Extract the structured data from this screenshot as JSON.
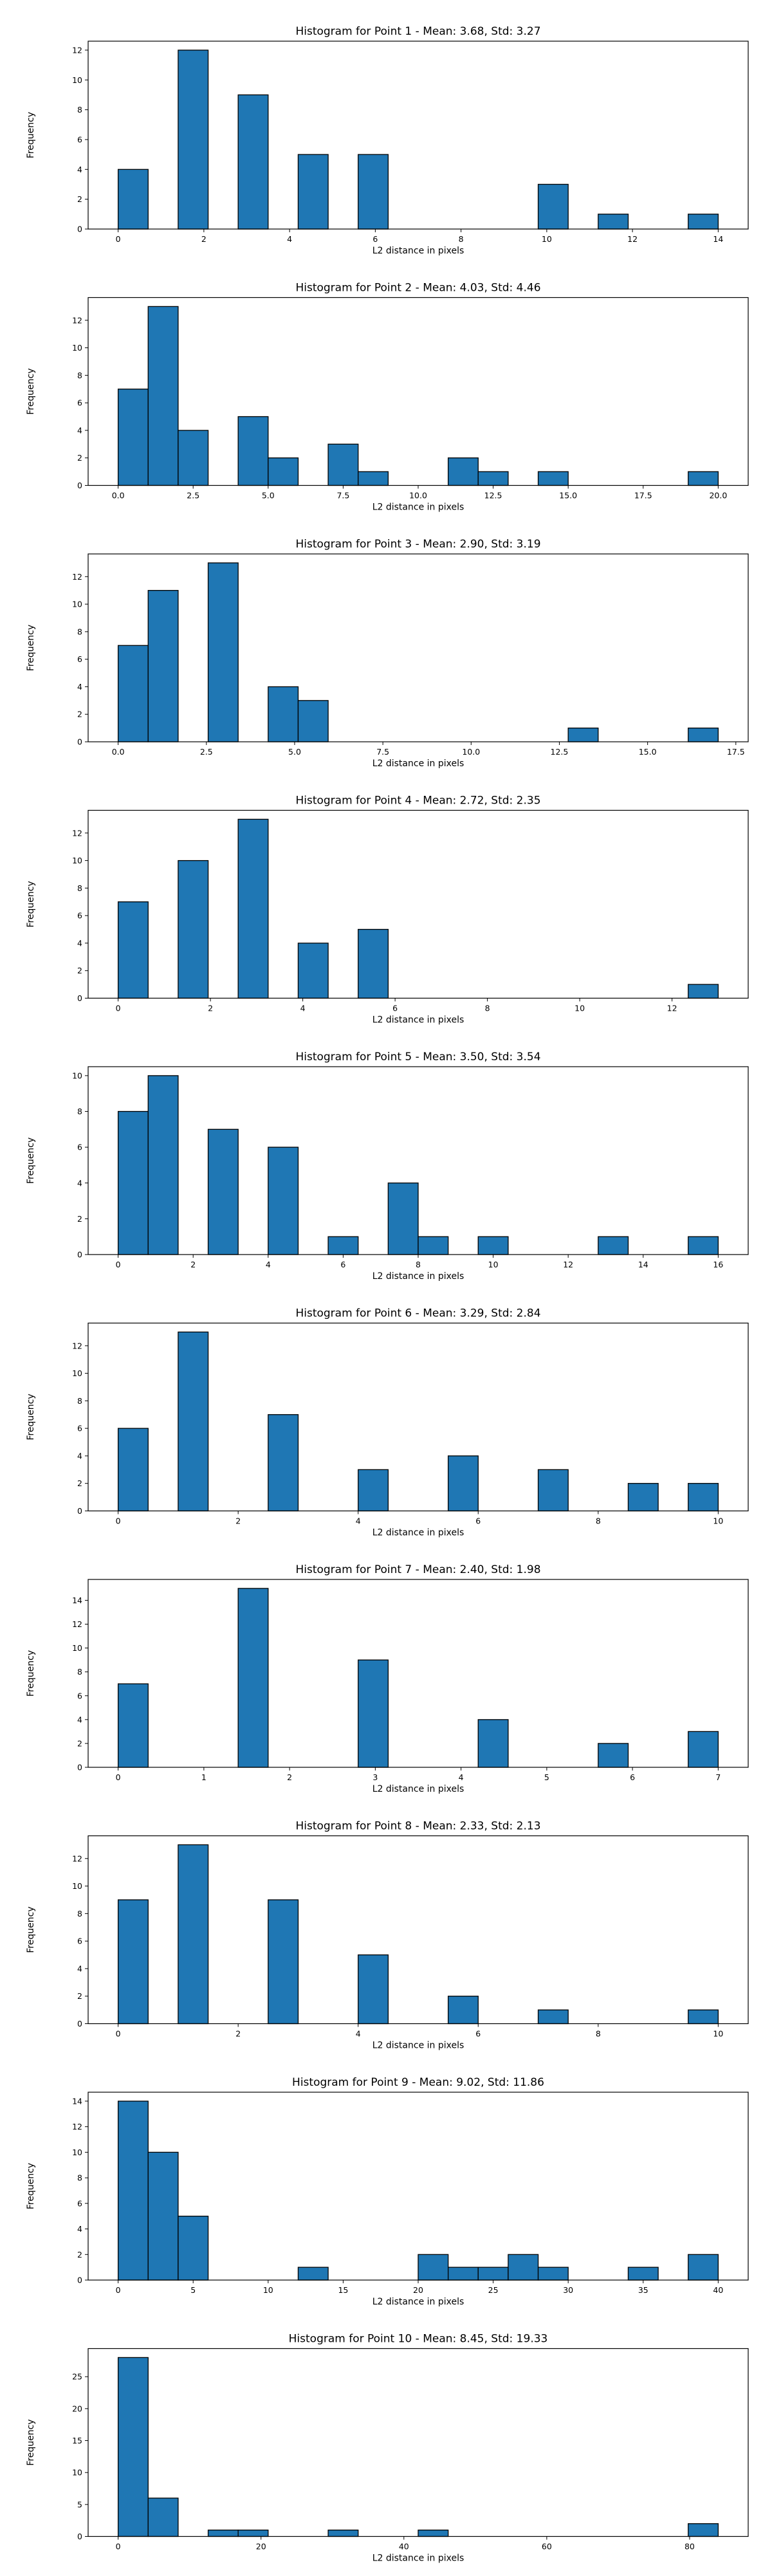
{
  "colors": {
    "bar": "#1f77b4",
    "edge": "#000000"
  },
  "chart_data": [
    {
      "type": "bar",
      "title": "Histogram for Point 1 - Mean: 3.68, Std: 3.27",
      "xlabel": "L2 distance in pixels",
      "ylabel": "Frequency",
      "xlim": [
        -0.7,
        14.7
      ],
      "ylim": [
        0,
        12.6
      ],
      "xticks": [
        0,
        2,
        4,
        6,
        8,
        10,
        12,
        14
      ],
      "xtick_labels": [
        "0",
        "2",
        "4",
        "6",
        "8",
        "10",
        "12",
        "14"
      ],
      "yticks": [
        0,
        2,
        4,
        6,
        8,
        10,
        12
      ],
      "ytick_labels": [
        "0",
        "2",
        "4",
        "6",
        "8",
        "10",
        "12"
      ],
      "bins": [
        [
          0,
          0.7,
          4
        ],
        [
          1.4,
          2.1,
          12
        ],
        [
          2.8,
          3.5,
          9
        ],
        [
          4.2,
          4.9,
          5
        ],
        [
          5.6,
          6.3,
          5
        ],
        [
          9.8,
          10.5,
          3
        ],
        [
          11.2,
          11.9,
          1
        ],
        [
          13.3,
          14,
          1
        ]
      ]
    },
    {
      "type": "bar",
      "title": "Histogram for Point 2 - Mean: 4.03, Std: 4.46",
      "xlabel": "L2 distance in pixels",
      "ylabel": "Frequency",
      "xlim": [
        -1,
        21
      ],
      "ylim": [
        0,
        13.65
      ],
      "xticks": [
        0,
        2.5,
        5,
        7.5,
        10,
        12.5,
        15,
        17.5,
        20
      ],
      "xtick_labels": [
        "0.0",
        "2.5",
        "5.0",
        "7.5",
        "10.0",
        "12.5",
        "15.0",
        "17.5",
        "20.0"
      ],
      "yticks": [
        0,
        2,
        4,
        6,
        8,
        10,
        12
      ],
      "ytick_labels": [
        "0",
        "2",
        "4",
        "6",
        "8",
        "10",
        "12"
      ],
      "bins": [
        [
          0,
          1,
          7
        ],
        [
          1,
          2,
          13
        ],
        [
          2,
          3,
          4
        ],
        [
          4,
          5,
          5
        ],
        [
          5,
          6,
          2
        ],
        [
          7,
          8,
          3
        ],
        [
          8,
          9,
          1
        ],
        [
          11,
          12,
          2
        ],
        [
          12,
          13,
          1
        ],
        [
          14,
          15,
          1
        ],
        [
          19,
          20,
          1
        ]
      ]
    },
    {
      "type": "bar",
      "title": "Histogram for Point 3 - Mean: 2.90, Std: 3.19",
      "xlabel": "L2 distance in pixels",
      "ylabel": "Frequency",
      "xlim": [
        -0.85,
        17.85
      ],
      "ylim": [
        0,
        13.65
      ],
      "xticks": [
        0,
        2.5,
        5,
        7.5,
        10,
        12.5,
        15,
        17.5
      ],
      "xtick_labels": [
        "0.0",
        "2.5",
        "5.0",
        "7.5",
        "10.0",
        "12.5",
        "15.0",
        "17.5"
      ],
      "yticks": [
        0,
        2,
        4,
        6,
        8,
        10,
        12
      ],
      "ytick_labels": [
        "0",
        "2",
        "4",
        "6",
        "8",
        "10",
        "12"
      ],
      "bins": [
        [
          0,
          0.85,
          7
        ],
        [
          0.85,
          1.7,
          11
        ],
        [
          2.55,
          3.4,
          13
        ],
        [
          4.25,
          5.1,
          4
        ],
        [
          5.1,
          5.95,
          3
        ],
        [
          12.75,
          13.6,
          1
        ],
        [
          16.15,
          17,
          1
        ]
      ]
    },
    {
      "type": "bar",
      "title": "Histogram for Point 4 - Mean: 2.72, Std: 2.35",
      "xlabel": "L2 distance in pixels",
      "ylabel": "Frequency",
      "xlim": [
        -0.65,
        13.65
      ],
      "ylim": [
        0,
        13.65
      ],
      "xticks": [
        0,
        2,
        4,
        6,
        8,
        10,
        12
      ],
      "xtick_labels": [
        "0",
        "2",
        "4",
        "6",
        "8",
        "10",
        "12"
      ],
      "yticks": [
        0,
        2,
        4,
        6,
        8,
        10,
        12
      ],
      "ytick_labels": [
        "0",
        "2",
        "4",
        "6",
        "8",
        "10",
        "12"
      ],
      "bins": [
        [
          0,
          0.65,
          7
        ],
        [
          1.3,
          1.95,
          10
        ],
        [
          2.6,
          3.25,
          13
        ],
        [
          3.9,
          4.55,
          4
        ],
        [
          5.2,
          5.85,
          5
        ],
        [
          12.35,
          13,
          1
        ]
      ]
    },
    {
      "type": "bar",
      "title": "Histogram for Point 5 - Mean: 3.50, Std: 3.54",
      "xlabel": "L2 distance in pixels",
      "ylabel": "Frequency",
      "xlim": [
        -0.8,
        16.8
      ],
      "ylim": [
        0,
        10.5
      ],
      "xticks": [
        0,
        2,
        4,
        6,
        8,
        10,
        12,
        14,
        16
      ],
      "xtick_labels": [
        "0",
        "2",
        "4",
        "6",
        "8",
        "10",
        "12",
        "14",
        "16"
      ],
      "yticks": [
        0,
        2,
        4,
        6,
        8,
        10
      ],
      "ytick_labels": [
        "0",
        "2",
        "4",
        "6",
        "8",
        "10"
      ],
      "bins": [
        [
          0,
          0.8,
          8
        ],
        [
          0.8,
          1.6,
          10
        ],
        [
          2.4,
          3.2,
          7
        ],
        [
          4,
          4.8,
          6
        ],
        [
          5.6,
          6.4,
          1
        ],
        [
          7.2,
          8,
          4
        ],
        [
          8,
          8.8,
          1
        ],
        [
          9.6,
          10.4,
          1
        ],
        [
          12.8,
          13.6,
          1
        ],
        [
          15.2,
          16,
          1
        ]
      ]
    },
    {
      "type": "bar",
      "title": "Histogram for Point 6 - Mean: 3.29, Std: 2.84",
      "xlabel": "L2 distance in pixels",
      "ylabel": "Frequency",
      "xlim": [
        -0.5,
        10.5
      ],
      "ylim": [
        0,
        13.65
      ],
      "xticks": [
        0,
        2,
        4,
        6,
        8,
        10
      ],
      "xtick_labels": [
        "0",
        "2",
        "4",
        "6",
        "8",
        "10"
      ],
      "yticks": [
        0,
        2,
        4,
        6,
        8,
        10,
        12
      ],
      "ytick_labels": [
        "0",
        "2",
        "4",
        "6",
        "8",
        "10",
        "12"
      ],
      "bins": [
        [
          0,
          0.5,
          6
        ],
        [
          1,
          1.5,
          13
        ],
        [
          2.5,
          3,
          7
        ],
        [
          4,
          4.5,
          3
        ],
        [
          5.5,
          6,
          4
        ],
        [
          7,
          7.5,
          3
        ],
        [
          8.5,
          9,
          2
        ],
        [
          9.5,
          10,
          2
        ]
      ]
    },
    {
      "type": "bar",
      "title": "Histogram for Point 7 - Mean: 2.40, Std: 1.98",
      "xlabel": "L2 distance in pixels",
      "ylabel": "Frequency",
      "xlim": [
        -0.35,
        7.35
      ],
      "ylim": [
        0,
        15.75
      ],
      "xticks": [
        0,
        1,
        2,
        3,
        4,
        5,
        6,
        7
      ],
      "xtick_labels": [
        "0",
        "1",
        "2",
        "3",
        "4",
        "5",
        "6",
        "7"
      ],
      "yticks": [
        0,
        2,
        4,
        6,
        8,
        10,
        12,
        14
      ],
      "ytick_labels": [
        "0",
        "2",
        "4",
        "6",
        "8",
        "10",
        "12",
        "14"
      ],
      "bins": [
        [
          0,
          0.35,
          7
        ],
        [
          1.4,
          1.75,
          15
        ],
        [
          2.8,
          3.15,
          9
        ],
        [
          4.2,
          4.55,
          4
        ],
        [
          5.6,
          5.95,
          2
        ],
        [
          6.65,
          7,
          3
        ]
      ]
    },
    {
      "type": "bar",
      "title": "Histogram for Point 8 - Mean: 2.33, Std: 2.13",
      "xlabel": "L2 distance in pixels",
      "ylabel": "Frequency",
      "xlim": [
        -0.5,
        10.5
      ],
      "ylim": [
        0,
        13.65
      ],
      "xticks": [
        0,
        2,
        4,
        6,
        8,
        10
      ],
      "xtick_labels": [
        "0",
        "2",
        "4",
        "6",
        "8",
        "10"
      ],
      "yticks": [
        0,
        2,
        4,
        6,
        8,
        10,
        12
      ],
      "ytick_labels": [
        "0",
        "2",
        "4",
        "6",
        "8",
        "10",
        "12"
      ],
      "bins": [
        [
          0,
          0.5,
          9
        ],
        [
          1,
          1.5,
          13
        ],
        [
          2.5,
          3,
          9
        ],
        [
          4,
          4.5,
          5
        ],
        [
          5.5,
          6,
          2
        ],
        [
          7,
          7.5,
          1
        ],
        [
          9.5,
          10,
          1
        ]
      ]
    },
    {
      "type": "bar",
      "title": "Histogram for Point 9 - Mean: 9.02, Std: 11.86",
      "xlabel": "L2 distance in pixels",
      "ylabel": "Frequency",
      "xlim": [
        -2,
        42
      ],
      "ylim": [
        0,
        14.7
      ],
      "xticks": [
        0,
        5,
        10,
        15,
        20,
        25,
        30,
        35,
        40
      ],
      "xtick_labels": [
        "0",
        "5",
        "10",
        "15",
        "20",
        "25",
        "30",
        "35",
        "40"
      ],
      "yticks": [
        0,
        2,
        4,
        6,
        8,
        10,
        12,
        14
      ],
      "ytick_labels": [
        "0",
        "2",
        "4",
        "6",
        "8",
        "10",
        "12",
        "14"
      ],
      "bins": [
        [
          0,
          2,
          14
        ],
        [
          2,
          4,
          10
        ],
        [
          4,
          6,
          5
        ],
        [
          12,
          14,
          1
        ],
        [
          20,
          22,
          2
        ],
        [
          22,
          24,
          1
        ],
        [
          24,
          26,
          1
        ],
        [
          26,
          28,
          2
        ],
        [
          28,
          30,
          1
        ],
        [
          34,
          36,
          1
        ],
        [
          38,
          40,
          2
        ]
      ]
    },
    {
      "type": "bar",
      "title": "Histogram for Point 10 - Mean: 8.45, Std: 19.33",
      "xlabel": "L2 distance in pixels",
      "ylabel": "Frequency",
      "xlim": [
        -4.2,
        88.2
      ],
      "ylim": [
        0,
        29.4
      ],
      "xticks": [
        0,
        20,
        40,
        60,
        80
      ],
      "xtick_labels": [
        "0",
        "20",
        "40",
        "60",
        "80"
      ],
      "yticks": [
        0,
        5,
        10,
        15,
        20,
        25
      ],
      "ytick_labels": [
        "0",
        "5",
        "10",
        "15",
        "20",
        "25"
      ],
      "bins": [
        [
          0,
          4.2,
          28
        ],
        [
          4.2,
          8.4,
          6
        ],
        [
          12.6,
          16.8,
          1
        ],
        [
          16.8,
          21,
          1
        ],
        [
          29.4,
          33.6,
          1
        ],
        [
          42,
          46.2,
          1
        ],
        [
          79.8,
          84,
          2
        ]
      ]
    }
  ]
}
